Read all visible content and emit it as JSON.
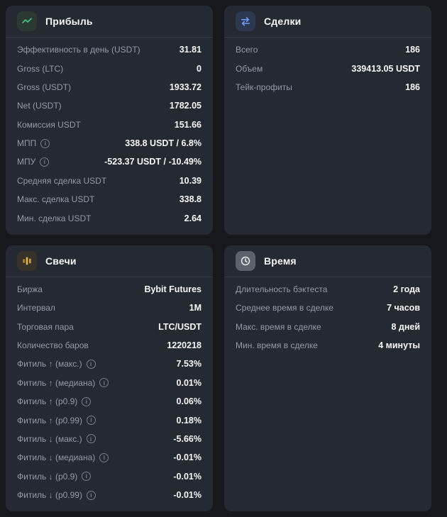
{
  "colors": {
    "page_bg": "#16181e",
    "card_bg": "#252932",
    "label_gray": "#949aa8",
    "value_white": "#f7f8fa",
    "profit_accent": "#48c17d",
    "trades_accent": "#6d9cf6",
    "candles_accent": "#e2a33c",
    "time_accent": "#e8e9ec"
  },
  "cards": {
    "profit": {
      "title": "Прибыль",
      "icon": "trend-up-icon",
      "rows": [
        {
          "label": "Эффективность в день (USDT)",
          "value": "31.81",
          "info": false
        },
        {
          "label": "Gross (LTC)",
          "value": "0",
          "info": false
        },
        {
          "label": "Gross (USDT)",
          "value": "1933.72",
          "info": false
        },
        {
          "label": "Net (USDT)",
          "value": "1782.05",
          "info": false
        },
        {
          "label": "Комиссия USDT",
          "value": "151.66",
          "info": false
        },
        {
          "label": "МПП",
          "value": "338.8 USDT / 6.8%",
          "info": true
        },
        {
          "label": "МПУ",
          "value": "-523.37 USDT / -10.49%",
          "info": true
        },
        {
          "label": "Средняя сделка USDT",
          "value": "10.39",
          "info": false
        },
        {
          "label": "Макс. сделка USDT",
          "value": "338.8",
          "info": false
        },
        {
          "label": "Мин. сделка USDT",
          "value": "2.64",
          "info": false
        }
      ]
    },
    "trades": {
      "title": "Сделки",
      "icon": "swap-arrows-icon",
      "rows": [
        {
          "label": "Всего",
          "value": "186",
          "info": false
        },
        {
          "label": "Объем",
          "value": "339413.05 USDT",
          "info": false
        },
        {
          "label": "Тейк-профиты",
          "value": "186",
          "info": false
        }
      ]
    },
    "candles": {
      "title": "Свечи",
      "icon": "candlestick-icon",
      "rows": [
        {
          "label": "Биржа",
          "value": "Bybit Futures",
          "info": false
        },
        {
          "label": "Интервал",
          "value": "1M",
          "info": false
        },
        {
          "label": "Торговая пара",
          "value": "LTC/USDT",
          "info": false
        },
        {
          "label": "Количество баров",
          "value": "1220218",
          "info": false
        },
        {
          "label": "Фитиль ↑ (макс.)",
          "value": "7.53%",
          "info": true
        },
        {
          "label": "Фитиль ↑ (медиана)",
          "value": "0.01%",
          "info": true
        },
        {
          "label": "Фитиль ↑ (p0.9)",
          "value": "0.06%",
          "info": true
        },
        {
          "label": "Фитиль ↑ (p0.99)",
          "value": "0.18%",
          "info": true
        },
        {
          "label": "Фитиль ↓ (макс.)",
          "value": "-5.66%",
          "info": true
        },
        {
          "label": "Фитиль ↓ (медиана)",
          "value": "-0.01%",
          "info": true
        },
        {
          "label": "Фитиль ↓ (p0.9)",
          "value": "-0.01%",
          "info": true
        },
        {
          "label": "Фитиль ↓ (p0.99)",
          "value": "-0.01%",
          "info": true
        }
      ]
    },
    "time": {
      "title": "Время",
      "icon": "clock-icon",
      "rows": [
        {
          "label": "Длительность бэктеста",
          "value": "2 года",
          "info": false
        },
        {
          "label": "Среднее время в сделке",
          "value": "7 часов",
          "info": false
        },
        {
          "label": "Макс. время в сделке",
          "value": "8 дней",
          "info": false
        },
        {
          "label": "Мин. время в сделке",
          "value": "4 минуты",
          "info": false
        }
      ]
    }
  }
}
